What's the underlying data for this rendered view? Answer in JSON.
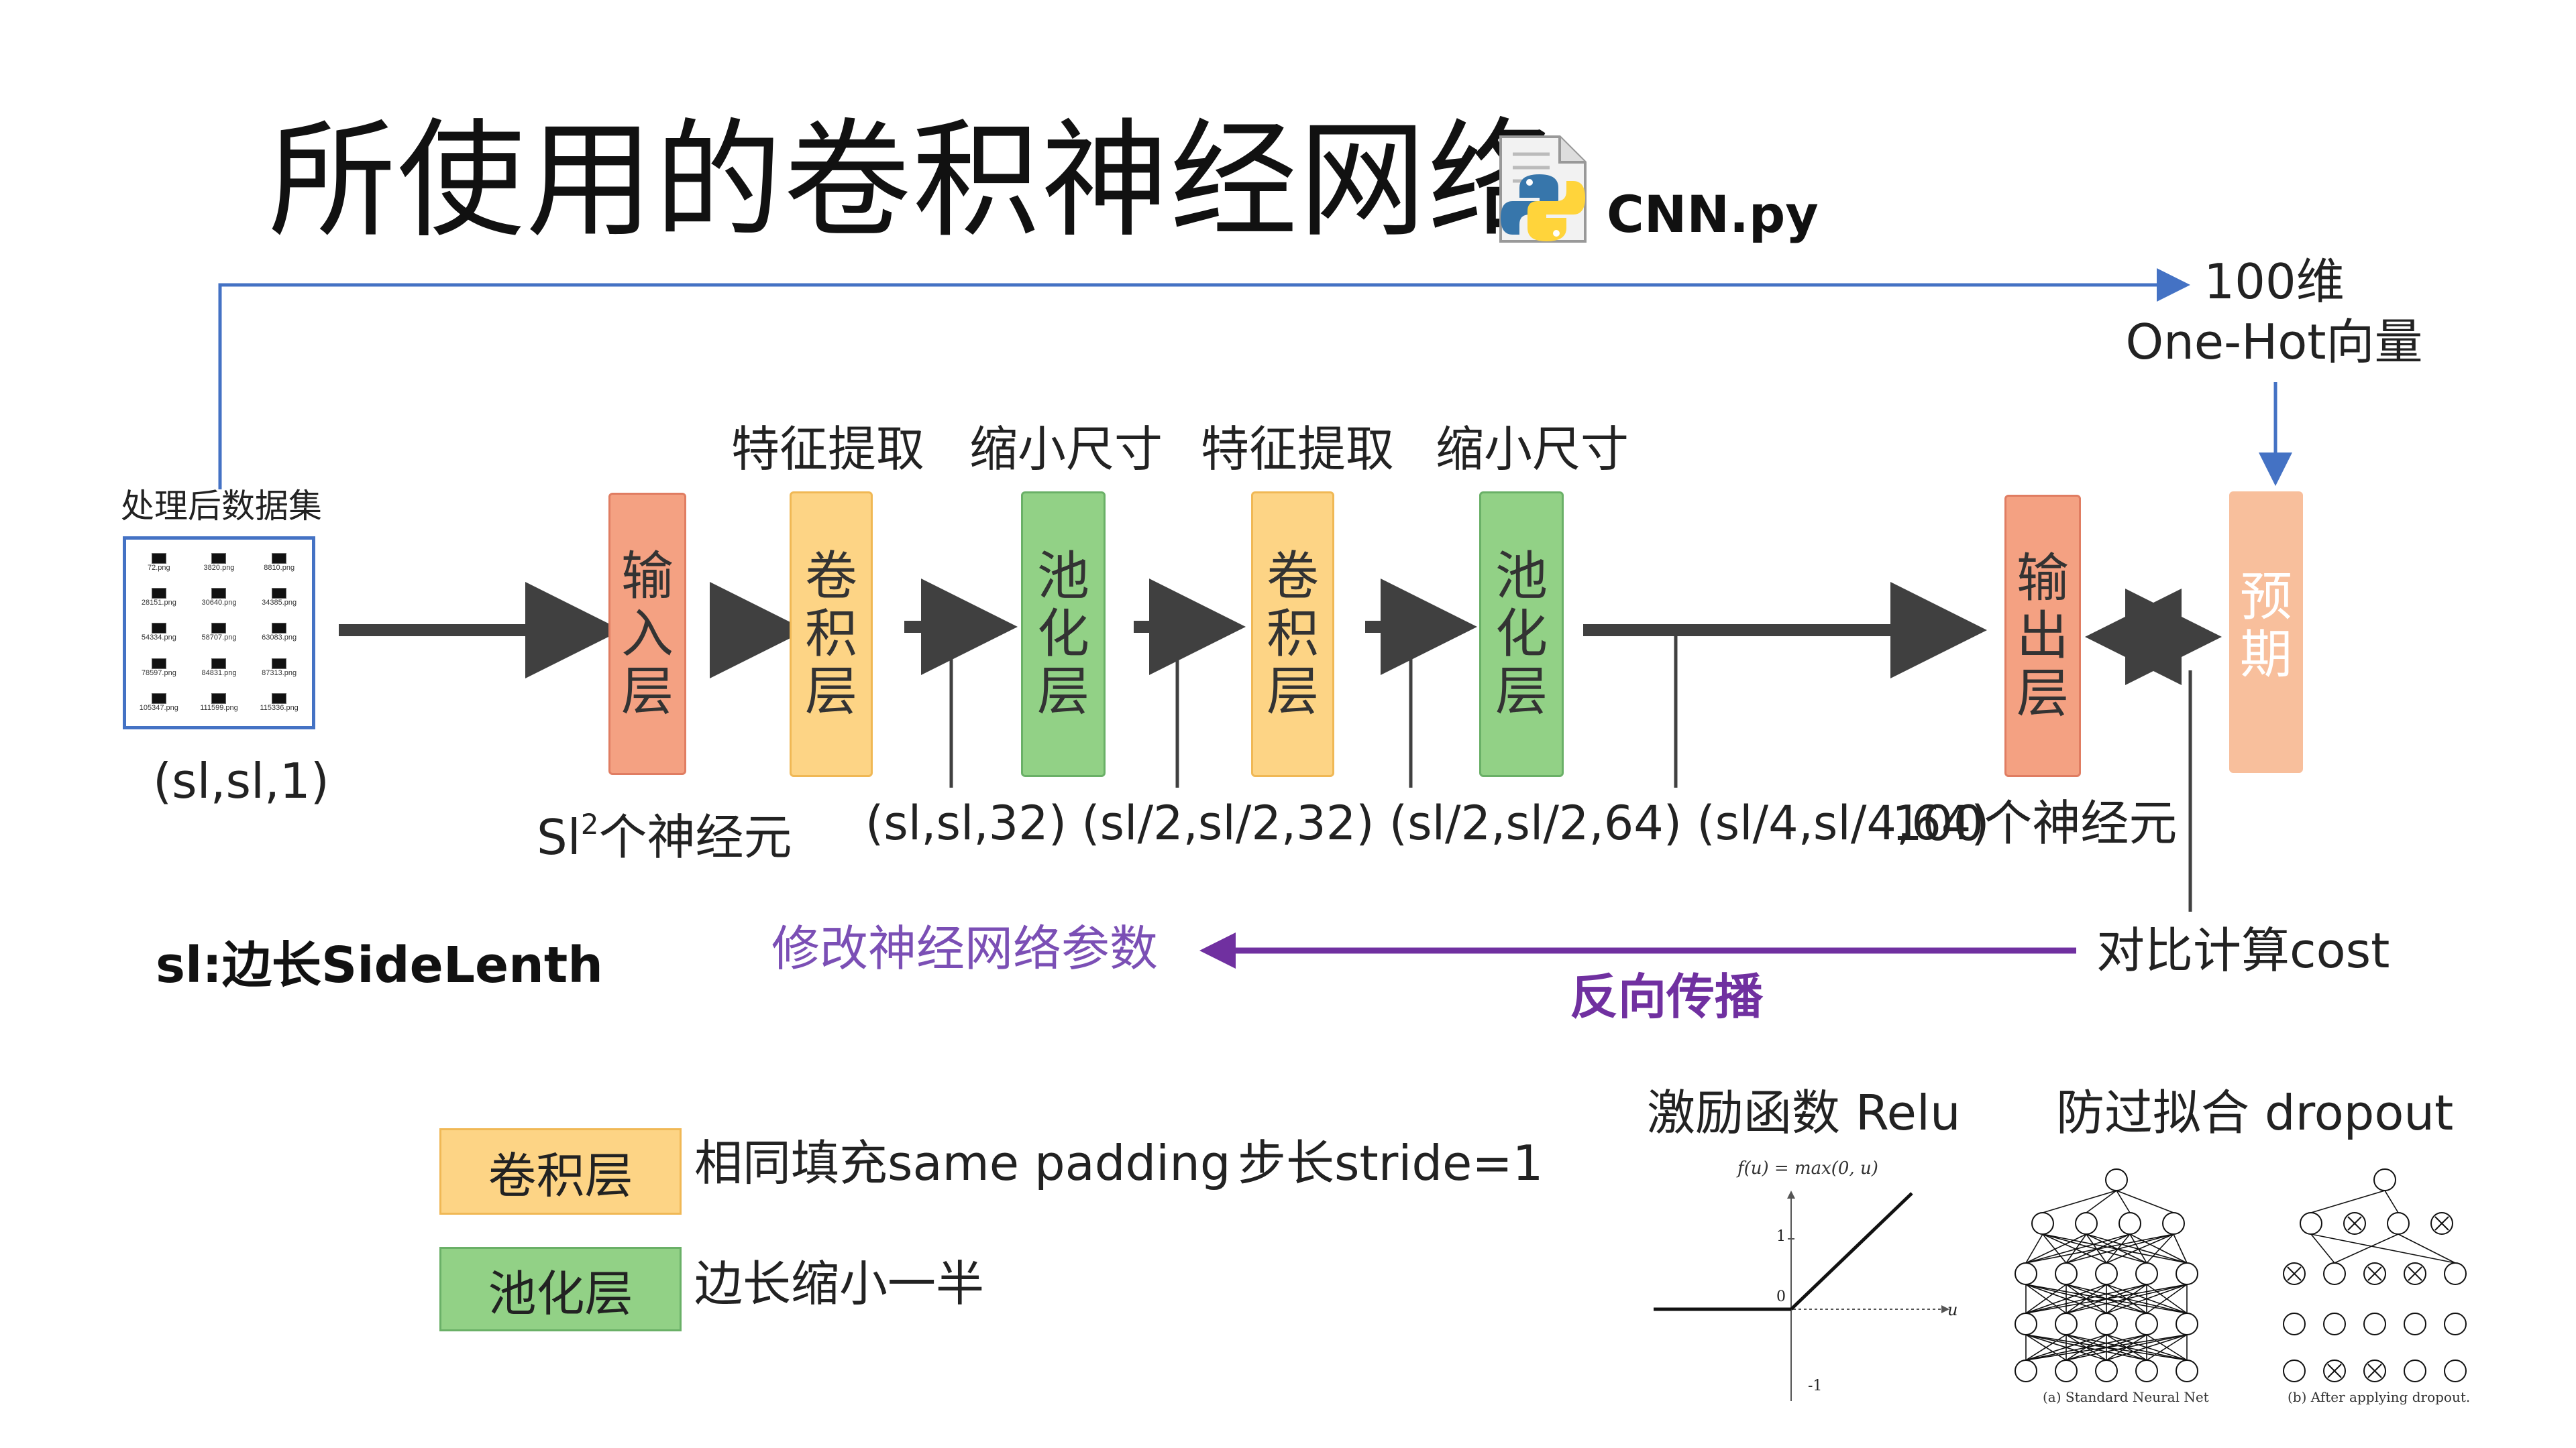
{
  "title": "所使用的卷积神经网络",
  "file": {
    "icon": "python-file-icon",
    "name": "CNN.py"
  },
  "dataset": {
    "label": "处理后数据集",
    "files": [
      "72.png",
      "3820.png",
      "8810.png",
      "28151.png",
      "30640.png",
      "34385.png",
      "54334.png",
      "58707.png",
      "63083.png",
      "78597.png",
      "84831.png",
      "87313.png",
      "105347.png",
      "111599.png",
      "115336.png"
    ],
    "shape": "(sl,sl,1)"
  },
  "layers": {
    "input": [
      "输",
      "入",
      "层"
    ],
    "conv1": [
      "卷",
      "积",
      "层"
    ],
    "pool1": [
      "池",
      "化",
      "层"
    ],
    "conv2": [
      "卷",
      "积",
      "层"
    ],
    "pool2": [
      "池",
      "化",
      "层"
    ],
    "output": [
      "输",
      "出",
      "层"
    ],
    "expected": [
      "预",
      "期"
    ]
  },
  "stage_labels": {
    "conv1": "特征提取",
    "pool1": "缩小尺寸",
    "conv2": "特征提取",
    "pool2": "缩小尺寸"
  },
  "neurons": {
    "input_prefix": "Sl",
    "input_sup": "2",
    "input_suffix": "个神经元",
    "shapes": "(sl,sl,32) (sl/2,sl/2,32) (sl/2,sl/2,64) (sl/4,sl/4,64)",
    "output": "100个神经元"
  },
  "target": {
    "line1": "100维",
    "line2": "One-Hot向量"
  },
  "legend_sl": "sl:边长SideLenth",
  "feedback": {
    "modify": "修改神经网络参数",
    "compare": "对比计算cost",
    "backprop": "反向传播"
  },
  "legend": {
    "conv_label": "卷积层",
    "conv_desc": "相同填充same padding",
    "conv_stride": "步长stride=1",
    "pool_label": "池化层",
    "pool_desc": "边长缩小一半"
  },
  "activation": {
    "title": "激励函数  Relu",
    "formula": "f(u) = max(0, u)",
    "ticks": [
      "1",
      "0",
      "-1"
    ],
    "axis_label": "u"
  },
  "dropout": {
    "title": "防过拟合 dropout",
    "caption_a": "(a) Standard Neural Net",
    "caption_b": "(b) After applying dropout."
  },
  "colors": {
    "input_layer": "#f4a182",
    "conv_layer": "#fdd485",
    "pool_layer": "#92d186",
    "expected_layer": "#f8bf9c",
    "blue_line": "#4472c4",
    "purple": "#7030a0",
    "arrow": "#404040"
  }
}
